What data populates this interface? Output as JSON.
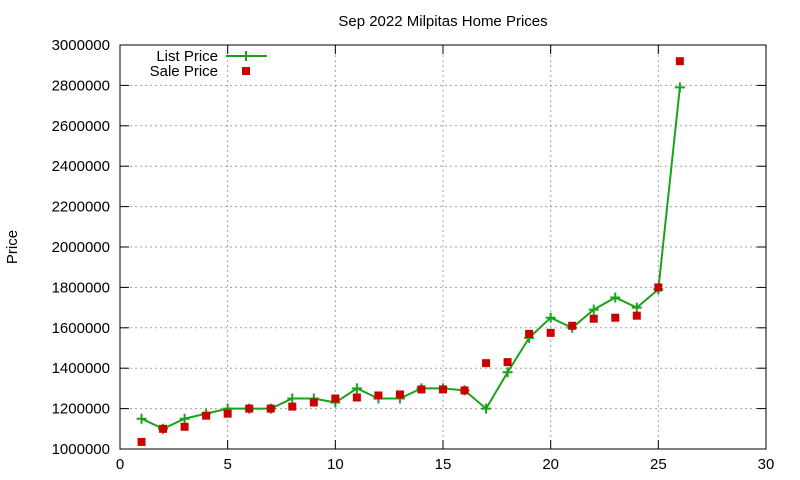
{
  "chart_data": {
    "type": "line",
    "title": "Sep 2022 Milpitas Home Prices",
    "xlabel": "",
    "ylabel": "Price",
    "xlim": [
      0,
      30
    ],
    "ylim": [
      1000000,
      3000000
    ],
    "xticks": [
      0,
      5,
      10,
      15,
      20,
      25,
      30
    ],
    "yticks": [
      1000000,
      1200000,
      1400000,
      1600000,
      1800000,
      2000000,
      2200000,
      2400000,
      2600000,
      2800000,
      3000000
    ],
    "grid": true,
    "legend_position": "top-left",
    "series": [
      {
        "name": "List Price",
        "style": "line-points",
        "color": "#1aa31a",
        "x": [
          1,
          2,
          3,
          4,
          5,
          6,
          7,
          8,
          9,
          10,
          11,
          12,
          13,
          14,
          15,
          16,
          17,
          18,
          19,
          20,
          21,
          22,
          23,
          24,
          25,
          26
        ],
        "y": [
          1150000,
          1100000,
          1150000,
          1175000,
          1200000,
          1200000,
          1200000,
          1250000,
          1250000,
          1230000,
          1300000,
          1250000,
          1250000,
          1300000,
          1300000,
          1290000,
          1200000,
          1380000,
          1550000,
          1650000,
          1600000,
          1690000,
          1750000,
          1700000,
          1790000,
          2790000
        ]
      },
      {
        "name": "Sale Price",
        "style": "points",
        "color": "#cc0000",
        "x": [
          1,
          2,
          3,
          4,
          5,
          6,
          7,
          8,
          9,
          10,
          11,
          12,
          13,
          14,
          15,
          16,
          17,
          18,
          19,
          20,
          21,
          22,
          23,
          24,
          25,
          26
        ],
        "y": [
          1035000,
          1100000,
          1110000,
          1165000,
          1175000,
          1200000,
          1200000,
          1210000,
          1230000,
          1250000,
          1255000,
          1265000,
          1270000,
          1295000,
          1295000,
          1290000,
          1425000,
          1430000,
          1570000,
          1575000,
          1610000,
          1645000,
          1650000,
          1660000,
          1800000,
          2920000
        ]
      }
    ]
  }
}
